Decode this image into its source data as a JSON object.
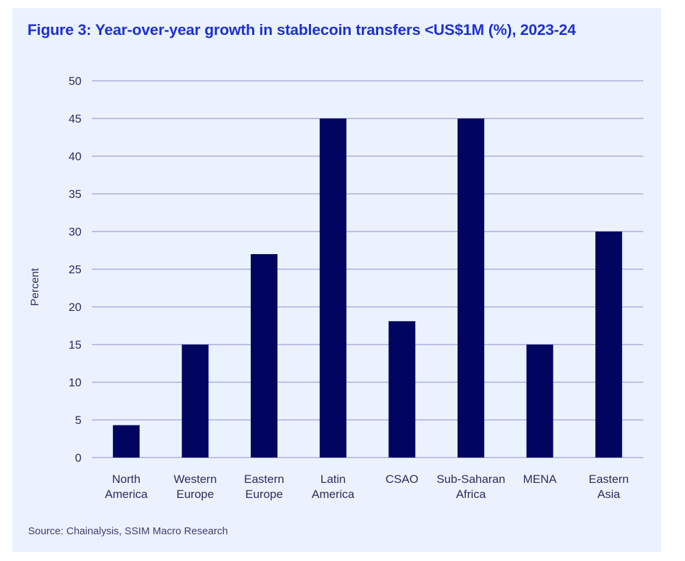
{
  "figure": {
    "title": "Figure 3: Year-over-year growth in stablecoin transfers <US$1M (%), 2023-24",
    "source": "Source: Chainalysis, SSIM Macro Research"
  },
  "colors": {
    "background": "#eaf2fd",
    "title": "#1f2fd6",
    "bar": "#020560",
    "grid": "#a9acdc",
    "text": "#2a2d5e"
  },
  "chart_data": {
    "type": "bar",
    "title": "Figure 3: Year-over-year growth in stablecoin transfers <US$1M (%), 2023-24",
    "xlabel": "",
    "ylabel": "Percent",
    "categories": [
      [
        "North",
        "America"
      ],
      [
        "Western",
        "Europe"
      ],
      [
        "Eastern",
        "Europe"
      ],
      [
        "Latin",
        "America"
      ],
      [
        "CSAO"
      ],
      [
        "Sub-Saharan",
        "Africa"
      ],
      [
        "MENA"
      ],
      [
        "Eastern",
        "Asia"
      ]
    ],
    "category_names": [
      "North America",
      "Western Europe",
      "Eastern Europe",
      "Latin America",
      "CSAO",
      "Sub-Saharan Africa",
      "MENA",
      "Eastern Asia"
    ],
    "values": [
      4.3,
      15,
      27,
      45,
      18.1,
      45,
      15,
      30
    ],
    "ylim": [
      0,
      50
    ],
    "yticks": [
      0,
      5,
      10,
      15,
      20,
      25,
      30,
      35,
      40,
      45,
      50
    ],
    "grid": true,
    "legend": "none",
    "source": "Source: Chainalysis, SSIM Macro Research"
  }
}
